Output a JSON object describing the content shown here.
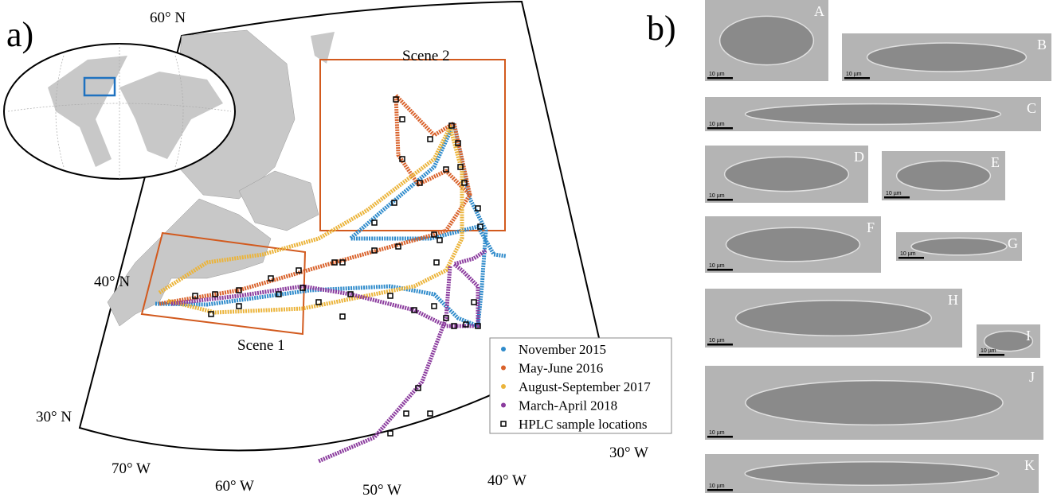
{
  "panel_a": {
    "label": "a)",
    "lat_labels": [
      "60° N",
      "40° N",
      "30° N"
    ],
    "lon_labels": [
      "70° W",
      "60° W",
      "50° W",
      "40° W",
      "30° W"
    ],
    "scenes": [
      "Scene 1",
      "Scene 2"
    ],
    "legend": [
      {
        "name": "November 2015",
        "color": "#2f8bcb"
      },
      {
        "name": "May-June 2016",
        "color": "#d9622b"
      },
      {
        "name": "August-September 2017",
        "color": "#ebb43b"
      },
      {
        "name": "March-April 2018",
        "color": "#8b3c9e"
      },
      {
        "name": "HPLC sample locations",
        "color": "#000000"
      }
    ]
  },
  "panel_b": {
    "label": "b)",
    "images": [
      {
        "letter": "A",
        "scale": "10 µm"
      },
      {
        "letter": "B",
        "scale": "10 µm"
      },
      {
        "letter": "C",
        "scale": "10 µm"
      },
      {
        "letter": "D",
        "scale": "10 µm"
      },
      {
        "letter": "E",
        "scale": "10 µm"
      },
      {
        "letter": "F",
        "scale": "10 µm"
      },
      {
        "letter": "G",
        "scale": "10 µm"
      },
      {
        "letter": "H",
        "scale": "10 µm"
      },
      {
        "letter": "I",
        "scale": "10 µm"
      },
      {
        "letter": "J",
        "scale": "10 µm"
      },
      {
        "letter": "K",
        "scale": "10 µm"
      }
    ]
  }
}
